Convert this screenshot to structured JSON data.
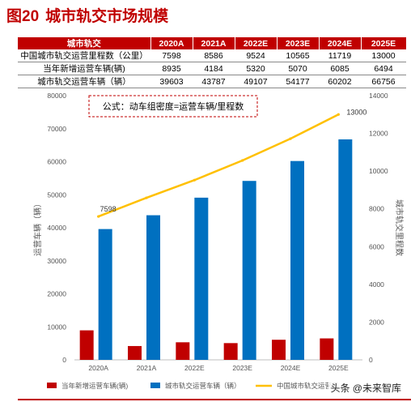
{
  "figure": {
    "number": "图20",
    "title": "城市轨交市场规模"
  },
  "table": {
    "header": [
      "城市轨交",
      "2020A",
      "2021A",
      "2022E",
      "2023E",
      "2024E",
      "2025E"
    ],
    "rows": [
      {
        "label": "中国城市轨交运营里程数（公里）",
        "values": [
          "7598",
          "8586",
          "9524",
          "10565",
          "11719",
          "13000"
        ]
      },
      {
        "label": "当年新增运营车辆(辆)",
        "values": [
          "8935",
          "4184",
          "5320",
          "5070",
          "6085",
          "6494"
        ]
      },
      {
        "label": "城市轨交运营车辆（辆）",
        "values": [
          "39603",
          "43787",
          "49107",
          "54177",
          "60202",
          "66756"
        ]
      }
    ]
  },
  "chart_data": {
    "type": "bar",
    "categories": [
      "2020A",
      "2021A",
      "2022E",
      "2023E",
      "2024E",
      "2025E"
    ],
    "series": [
      {
        "name": "当年新增运营车辆(辆)",
        "kind": "bar",
        "axis": "left",
        "color": "#c00000",
        "values": [
          8935,
          4184,
          5320,
          5070,
          6085,
          6494
        ]
      },
      {
        "name": "城市轨交运营车辆（辆）",
        "kind": "bar",
        "axis": "left",
        "color": "#0070c0",
        "values": [
          39603,
          43787,
          49107,
          54177,
          60202,
          66756
        ]
      },
      {
        "name": "中国城市轨交运营里程数",
        "kind": "line",
        "axis": "right",
        "color": "#ffc000",
        "values": [
          7598,
          8586,
          9524,
          10565,
          11719,
          13000
        ]
      }
    ],
    "ylabel": "运营车辆（辆）",
    "y2label": "城市轨交里程数",
    "ylim": [
      0,
      80000
    ],
    "y2lim": [
      0,
      14000
    ],
    "yticks": [
      "0",
      "10000",
      "20000",
      "30000",
      "40000",
      "50000",
      "60000",
      "70000",
      "80000"
    ],
    "y2ticks": [
      "0",
      "2000",
      "4000",
      "6000",
      "8000",
      "10000",
      "12000",
      "14000"
    ],
    "line_labels": [
      {
        "index": 0,
        "text": "7598"
      },
      {
        "index": 5,
        "text": "13000"
      }
    ],
    "annotation": "公式：动车组密度=运营车辆/里程数",
    "grid": false,
    "legend": "bottom",
    "legend_labels": [
      "当年新增运营车辆(辆)",
      "城市轨交运营车辆（辆）",
      "中国城市轨交运营里"
    ]
  },
  "watermark": "头条 @未来智库"
}
